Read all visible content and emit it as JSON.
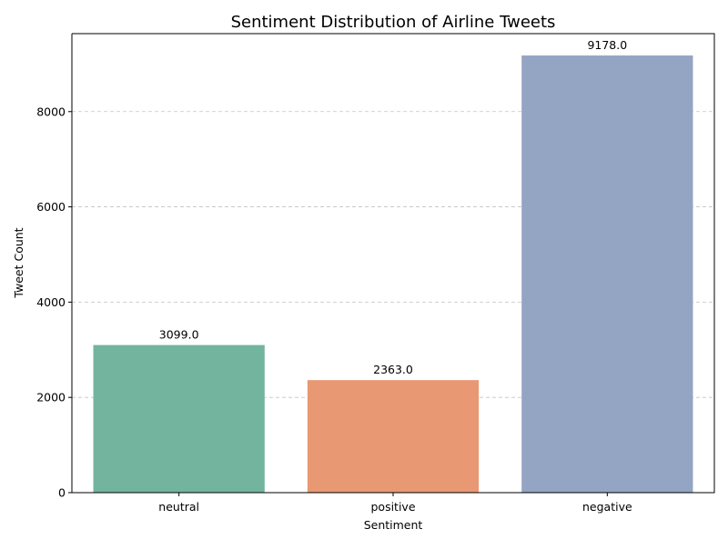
{
  "chart_data": {
    "type": "bar",
    "title": "Sentiment Distribution of Airline Tweets",
    "xlabel": "Sentiment",
    "ylabel": "Tweet Count",
    "categories": [
      "neutral",
      "positive",
      "negative"
    ],
    "values": [
      3099,
      2363,
      9178
    ],
    "data_labels": [
      "3099.0",
      "2363.0",
      "9178.0"
    ],
    "colors": [
      "#73b49f",
      "#e99874",
      "#94a5c3"
    ],
    "ylim": [
      0,
      9637
    ],
    "yticks": [
      0,
      2000,
      4000,
      6000,
      8000
    ],
    "ytick_labels": [
      "0",
      "2000",
      "4000",
      "6000",
      "8000"
    ],
    "grid": "y-axis dashed",
    "legend": "none"
  }
}
